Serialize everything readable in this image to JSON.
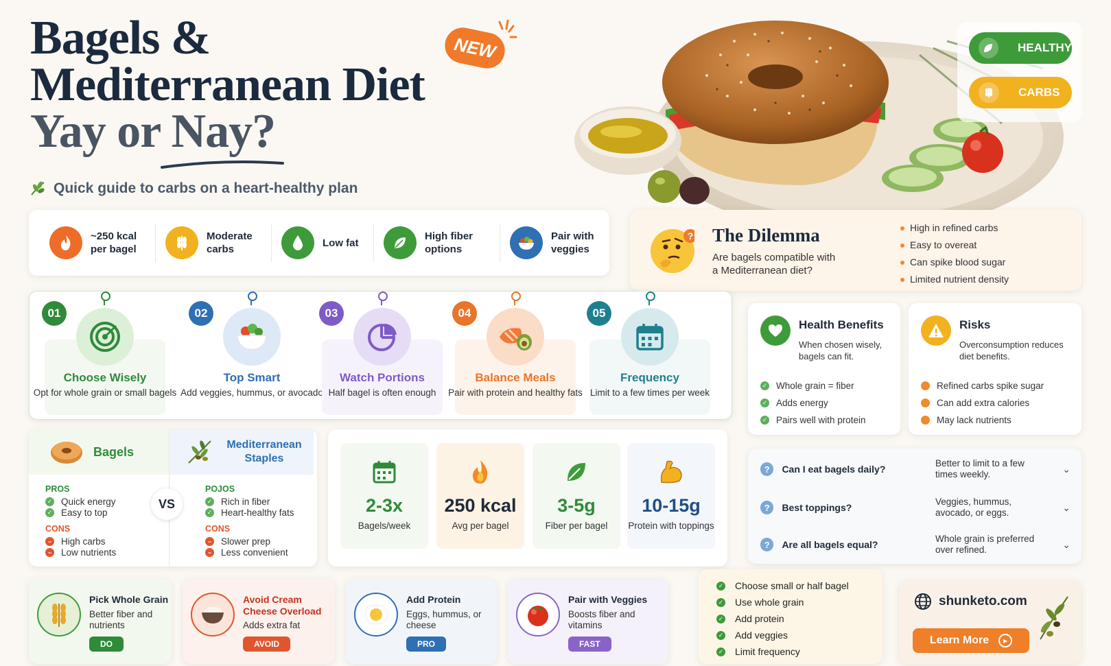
{
  "header": {
    "title_line1": "Bagels &",
    "title_line2": "Mediterranean Diet",
    "title_line3": "Yay or Nay?",
    "new_badge": "NEW",
    "subtitle": "Quick guide to carbs on a heart-healthy plan"
  },
  "tags": [
    {
      "label": "HEALTHY",
      "color": "#3e9b3a"
    },
    {
      "label": "CARBS",
      "color": "#f2b11f"
    }
  ],
  "stats": [
    {
      "label": "~250 kcal per bagel",
      "icon": "flame-icon",
      "color": "#ef6c28"
    },
    {
      "label": "Moderate carbs",
      "icon": "wheat-icon",
      "color": "#f2b11f"
    },
    {
      "label": "Low fat",
      "icon": "drop-icon",
      "color": "#3e9b3a"
    },
    {
      "label": "High fiber options",
      "icon": "leaf-icon",
      "color": "#3e9b3a"
    },
    {
      "label": "Pair with veggies",
      "icon": "bowl-icon",
      "color": "#2f6fb3"
    }
  ],
  "dilemma": {
    "title": "The Dilemma",
    "question": "Are bagels compatible with a Mediterranean diet?",
    "bullets": [
      "High in refined carbs",
      "Easy to overeat",
      "Can spike blood sugar",
      "Limited nutrient density"
    ]
  },
  "steps": [
    {
      "num": "01",
      "title": "Choose Wisely",
      "desc": "Opt for whole grain or small bagels",
      "color": "#2f8a3a",
      "bg": "#f3f8f1"
    },
    {
      "num": "02",
      "title": "Top Smart",
      "desc": "Add veggies, hummus, or avocado",
      "color": "#2f6fb3",
      "bg": "#ffffff"
    },
    {
      "num": "03",
      "title": "Watch Portions",
      "desc": "Half bagel is often enough",
      "color": "#7e5bc6",
      "bg": "#f6f2fb"
    },
    {
      "num": "04",
      "title": "Balance Meals",
      "desc": "Pair with protein and healthy fats",
      "color": "#e9742a",
      "bg": "#fdf3ea"
    },
    {
      "num": "05",
      "title": "Frequency",
      "desc": "Limit to a few times per week",
      "color": "#1f7f8f",
      "bg": "#f2f7f8"
    }
  ],
  "benefits": {
    "title": "Health Benefits",
    "desc": "When chosen wisely, bagels can fit.",
    "items": [
      "Whole grain = fiber",
      "Adds energy",
      "Pairs well with protein"
    ]
  },
  "risks": {
    "title": "Risks",
    "desc": "Overconsumption reduces diet benefits.",
    "items": [
      "Refined carbs spike sugar",
      "Can add extra calories",
      "May lack nutrients"
    ]
  },
  "comparison": {
    "vs": "VS",
    "bagels": {
      "title": "Bagels",
      "pros_label": "PROS",
      "pros": [
        "Quick energy",
        "Easy to top"
      ],
      "cons_label": "CONS",
      "cons": [
        "High carbs",
        "Low nutrients"
      ]
    },
    "mediterranean": {
      "title": "Mediterranean Staples",
      "pros_label": "POJOS",
      "pros": [
        "Rich in fiber",
        "Heart-healthy fats"
      ],
      "cons_label": "CONS",
      "cons": [
        "Slower prep",
        "Less convenient"
      ]
    }
  },
  "metrics": [
    {
      "value": "2-3x",
      "label": "Bagels/week",
      "color": "#2f8a3a",
      "bg": "#f3f8f1"
    },
    {
      "value": "250 kcal",
      "label": "Avg per bagel",
      "color": "#1f2a38",
      "bg": "#fdf3e4"
    },
    {
      "value": "3-5g",
      "label": "Fiber per bagel",
      "color": "#2f8a3a",
      "bg": "#f3f8f1"
    },
    {
      "value": "10-15g",
      "label": "Protein with toppings",
      "color": "#1f4e8a",
      "bg": "#f3f6fa"
    }
  ],
  "faq": [
    {
      "q": "Can I eat bagels daily?",
      "a": "Better to limit to a few times weekly."
    },
    {
      "q": "Best toppings?",
      "a": "Veggies, hummus, avocado, or eggs."
    },
    {
      "q": "Are all bagels equal?",
      "a": "Whole grain is preferred over refined."
    }
  ],
  "tips": [
    {
      "title": "Pick Whole Grain",
      "desc": "Better fiber and nutrients",
      "badge": "DO",
      "color": "#2f8a3a",
      "bg": "#f3f8ee",
      "title_color": "#1f2a38"
    },
    {
      "title": "Avoid Cream Cheese Overload",
      "desc": "Adds extra fat",
      "badge": "AVOID",
      "color": "#e0552d",
      "bg": "#fdf1ed",
      "title_color": "#c8321f"
    },
    {
      "title": "Add Protein",
      "desc": "Eggs, hummus, or cheese",
      "badge": "PRO",
      "color": "#2f6fb3",
      "bg": "#f1f5fa",
      "title_color": "#1f2a38"
    },
    {
      "title": "Pair with Veggies",
      "desc": "Boosts fiber and vitamins",
      "badge": "FAST",
      "color": "#8a63c9",
      "bg": "#f5f1fa",
      "title_color": "#1f2a38"
    }
  ],
  "checklist": [
    "Choose small or half bagel",
    "Use whole grain",
    "Add protein",
    "Add veggies",
    "Limit frequency"
  ],
  "site": {
    "url": "shunketo.com",
    "button": "Learn More"
  }
}
